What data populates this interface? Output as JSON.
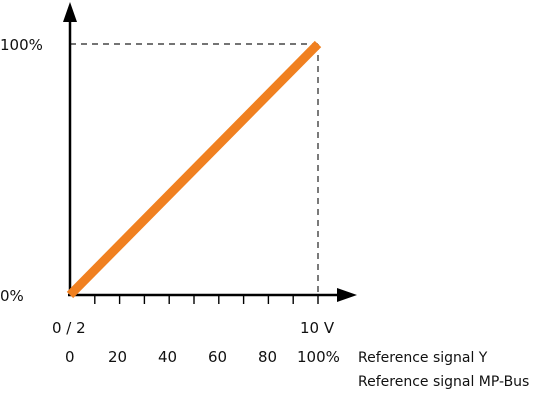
{
  "chart_data": {
    "type": "line",
    "title": "",
    "y_tick_labels": [
      "0%",
      "100%"
    ],
    "x_tick_labels_upper": [
      "0 / 2",
      "10 V"
    ],
    "x_tick_labels_lower": [
      "0",
      "20",
      "40",
      "60",
      "80",
      "100%"
    ],
    "x_axis_rows": [
      "Reference signal Y",
      "Reference signal MP-Bus"
    ],
    "x_minor_ticks": 10,
    "guide_lines": "dashed",
    "series": [
      {
        "color": "#f08020",
        "x": [
          0,
          100
        ],
        "y": [
          0,
          100
        ]
      }
    ],
    "xlim": [
      0,
      100
    ],
    "ylim": [
      0,
      100
    ],
    "grid": false
  }
}
